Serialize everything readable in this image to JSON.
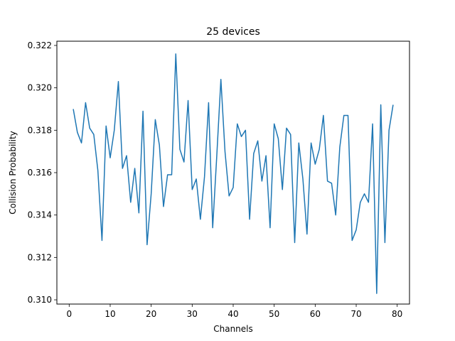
{
  "chart_data": {
    "type": "line",
    "title": "25 devices",
    "xlabel": "Channels",
    "ylabel": "Collision Probability",
    "xlim": [
      -3,
      83
    ],
    "ylim": [
      0.3098,
      0.3222
    ],
    "xticks": [
      0,
      10,
      20,
      30,
      40,
      50,
      60,
      70,
      80
    ],
    "yticks": [
      0.31,
      0.312,
      0.314,
      0.316,
      0.318,
      0.32,
      0.322
    ],
    "xtick_labels": [
      "0",
      "10",
      "20",
      "30",
      "40",
      "50",
      "60",
      "70",
      "80"
    ],
    "ytick_labels": [
      "0.310",
      "0.312",
      "0.314",
      "0.316",
      "0.318",
      "0.320",
      "0.322"
    ],
    "grid": false,
    "series": [
      {
        "color": "#1f77b4",
        "x": [
          1,
          2,
          3,
          4,
          5,
          6,
          7,
          8,
          9,
          10,
          11,
          12,
          13,
          14,
          15,
          16,
          17,
          18,
          19,
          20,
          21,
          22,
          23,
          24,
          25,
          26,
          27,
          28,
          29,
          30,
          31,
          32,
          33,
          34,
          35,
          36,
          37,
          38,
          39,
          40,
          41,
          42,
          43,
          44,
          45,
          46,
          47,
          48,
          49,
          50,
          51,
          52,
          53,
          54,
          55,
          56,
          57,
          58,
          59,
          60,
          61,
          62,
          63,
          64,
          65,
          66,
          67,
          68,
          69,
          70,
          71,
          72,
          73,
          74,
          75,
          76,
          77,
          78,
          79
        ],
        "y": [
          0.319,
          0.3179,
          0.3174,
          0.3193,
          0.3181,
          0.3178,
          0.3161,
          0.3128,
          0.3182,
          0.3167,
          0.318,
          0.3203,
          0.3162,
          0.3168,
          0.3146,
          0.3162,
          0.3141,
          0.3189,
          0.3126,
          0.315,
          0.3185,
          0.3173,
          0.3144,
          0.3159,
          0.3159,
          0.3216,
          0.3171,
          0.3165,
          0.3194,
          0.3152,
          0.3157,
          0.3138,
          0.3158,
          0.3193,
          0.3134,
          0.3168,
          0.3204,
          0.317,
          0.3149,
          0.3153,
          0.3183,
          0.3177,
          0.318,
          0.3138,
          0.3169,
          0.3175,
          0.3156,
          0.3168,
          0.3134,
          0.3183,
          0.3176,
          0.3152,
          0.3181,
          0.3178,
          0.3127,
          0.3174,
          0.3157,
          0.3131,
          0.3174,
          0.3164,
          0.3171,
          0.3187,
          0.3156,
          0.3155,
          0.314,
          0.3172,
          0.3187,
          0.3187,
          0.3128,
          0.3133,
          0.3146,
          0.315,
          0.3146,
          0.3183,
          0.3103,
          0.3192,
          0.3127,
          0.318,
          0.3192
        ]
      }
    ]
  }
}
